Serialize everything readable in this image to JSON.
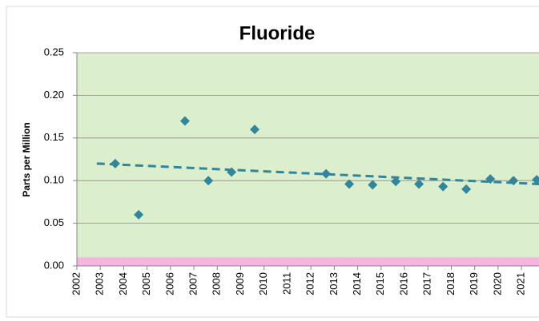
{
  "chart_data": {
    "type": "scatter",
    "title": "Fluoride",
    "y_label": "Parts per Million",
    "x": [
      2003.64,
      2004.64,
      2006.62,
      2007.62,
      2008.61,
      2009.6,
      2012.65,
      2013.64,
      2014.64,
      2015.63,
      2016.62,
      2017.65,
      2018.64,
      2019.67,
      2020.66,
      2021.65
    ],
    "values": [
      0.12,
      0.06,
      0.17,
      0.1,
      0.11,
      0.16,
      0.108,
      0.096,
      0.095,
      0.099,
      0.096,
      0.093,
      0.09,
      0.102,
      0.1,
      0.101
    ],
    "color": "#31859c",
    "trendline": {
      "x": [
        2002.85,
        2021.75
      ],
      "values": [
        0.12,
        0.096
      ],
      "color": "#31859c"
    },
    "background_color": "#dcefcc",
    "bands": [
      {
        "from": 0,
        "to": 0.01,
        "color": "#f8b4e0"
      }
    ],
    "xlim": [
      2002,
      2021.75
    ],
    "xticks": [
      2002,
      2003,
      2004,
      2005,
      2006,
      2007,
      2008,
      2009,
      2010,
      2011,
      2012,
      2013,
      2014,
      2015,
      2016,
      2017,
      2018,
      2019,
      2020,
      2021
    ],
    "ylim": [
      0,
      0.25
    ],
    "yticks": [
      {
        "value": 0,
        "label": "0.00"
      },
      {
        "value": 0.05,
        "label": "0.05"
      },
      {
        "value": 0.1,
        "label": "0.10"
      },
      {
        "value": 0.15,
        "label": "0.15"
      },
      {
        "value": 0.2,
        "label": "0.20"
      },
      {
        "value": 0.25,
        "label": "0.25"
      }
    ],
    "grid": true
  }
}
